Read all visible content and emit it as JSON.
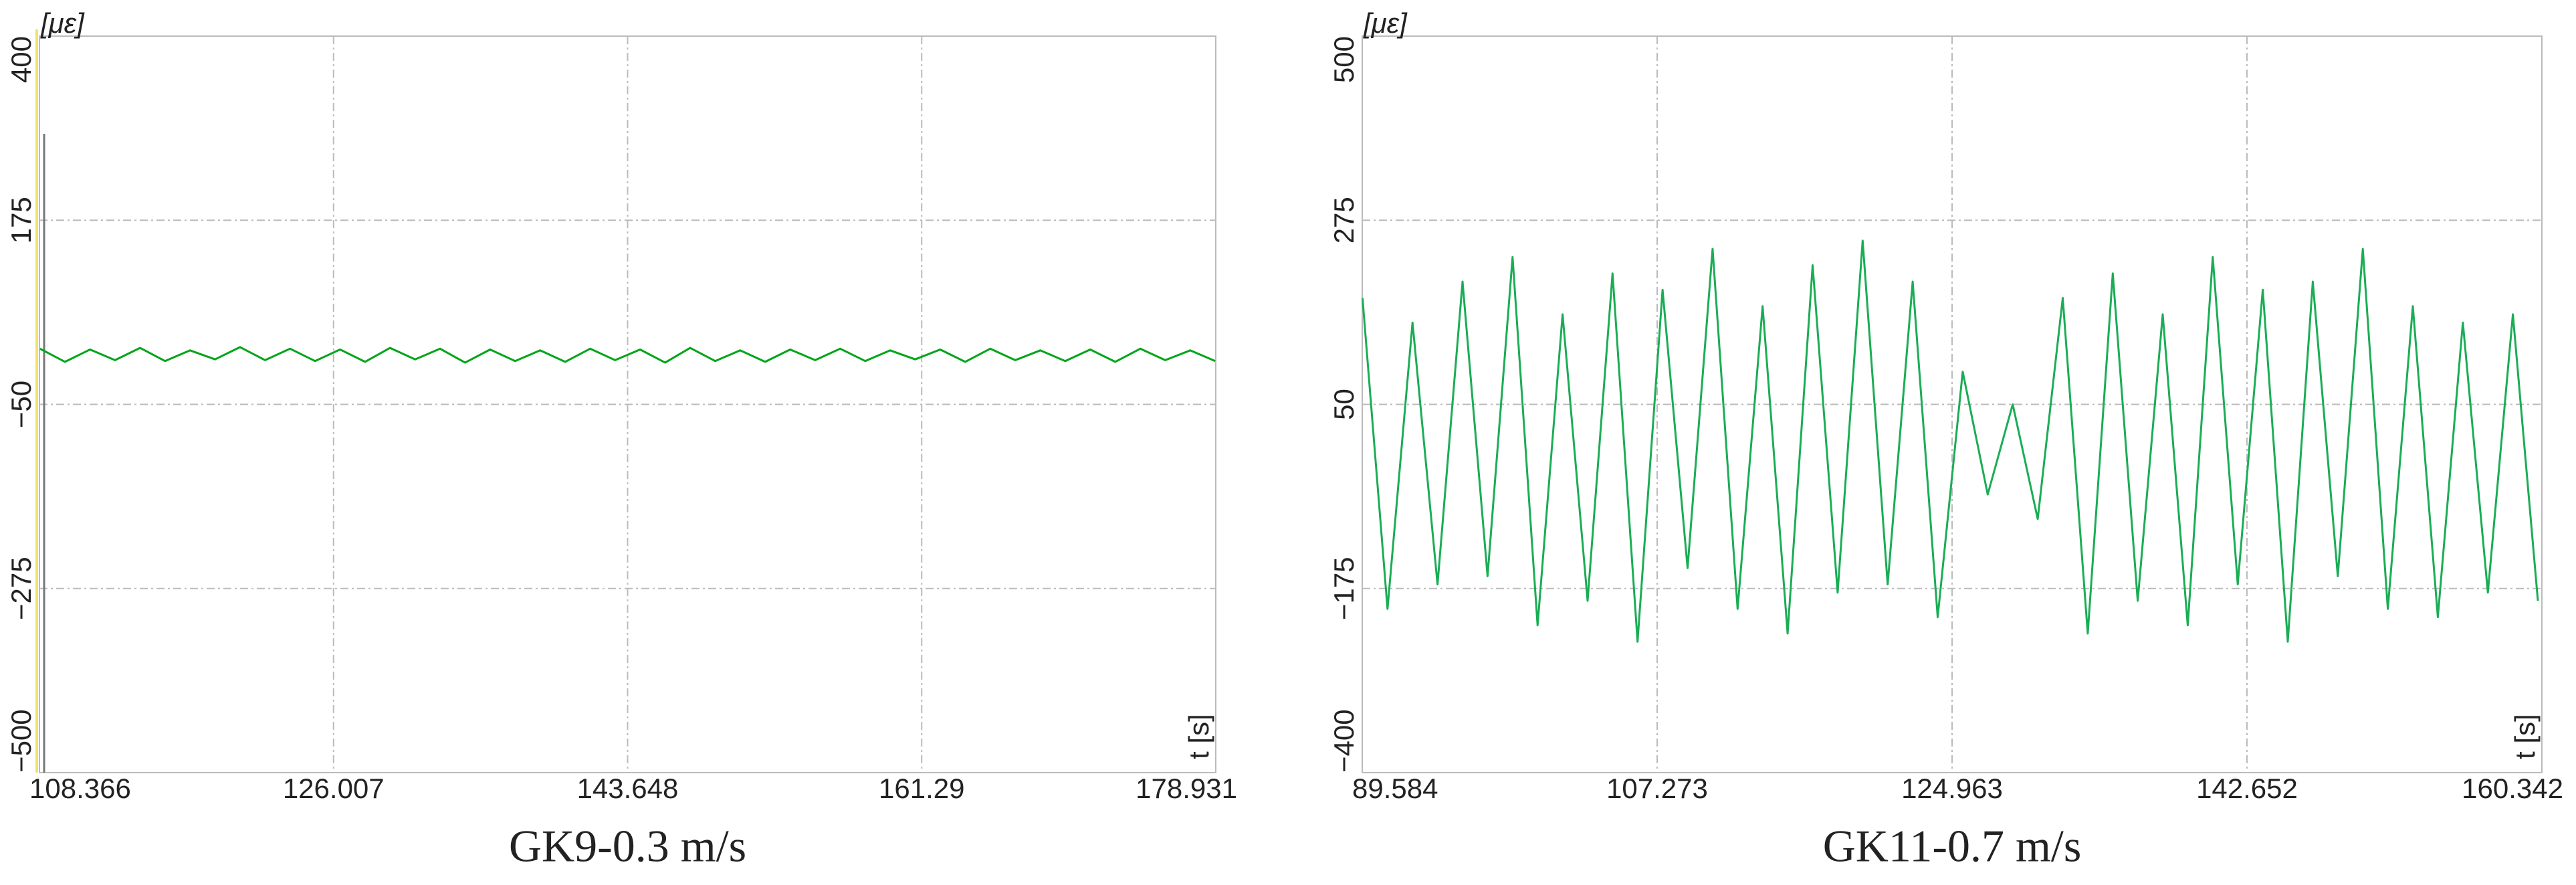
{
  "chart_data": [
    {
      "type": "line",
      "title": "GK9-0.3 m/s",
      "y_unit": "[με]",
      "x_label": "t [s]",
      "xlim": [
        108.366,
        178.931
      ],
      "xticks": [
        108.366,
        126.007,
        143.648,
        161.29,
        178.931
      ],
      "ylim": [
        -500,
        400
      ],
      "yticks": [
        400,
        175,
        {
          "value": -50,
          "label": "−50"
        },
        {
          "value": -275,
          "label": "−275"
        },
        {
          "value": -500,
          "label": "−500"
        }
      ],
      "grid": true,
      "series": [
        {
          "color": "#00a51a",
          "x": [
            108.4,
            109.9,
            111.4,
            112.9,
            114.4,
            115.9,
            117.4,
            118.9,
            120.4,
            121.9,
            123.4,
            124.9,
            126.4,
            127.9,
            129.4,
            130.9,
            132.4,
            133.9,
            135.4,
            136.9,
            138.4,
            139.9,
            141.4,
            142.9,
            144.4,
            145.9,
            147.4,
            148.9,
            150.4,
            151.9,
            153.4,
            154.9,
            156.4,
            157.9,
            159.4,
            160.9,
            162.4,
            163.9,
            165.4,
            166.9,
            168.4,
            169.9,
            171.4,
            172.9,
            174.4,
            175.9,
            177.4,
            178.9
          ],
          "values": [
            18,
            2,
            17,
            4,
            19,
            3,
            16,
            5,
            20,
            4,
            18,
            3,
            17,
            2,
            19,
            5,
            18,
            1,
            17,
            3,
            16,
            2,
            18,
            4,
            17,
            1,
            19,
            3,
            16,
            2,
            17,
            4,
            18,
            3,
            16,
            5,
            17,
            2,
            18,
            4,
            16,
            3,
            17,
            2,
            18,
            4,
            16,
            3
          ]
        }
      ]
    },
    {
      "type": "line",
      "title": "GK11-0.7 m/s",
      "y_unit": "[με]",
      "x_label": "t [s]",
      "xlim": [
        89.584,
        160.342
      ],
      "xticks": [
        89.584,
        107.273,
        124.963,
        142.652,
        160.342
      ],
      "ylim": [
        -400,
        500
      ],
      "yticks": [
        500,
        275,
        50,
        {
          "value": -175,
          "label": "−175"
        },
        {
          "value": -400,
          "label": "−400"
        }
      ],
      "grid": true,
      "series": [
        {
          "color": "#1aad55",
          "x": [
            89.6,
            91.1,
            92.6,
            94.1,
            95.6,
            97.1,
            98.6,
            100.1,
            101.6,
            103.1,
            104.6,
            106.1,
            107.6,
            109.1,
            110.6,
            112.1,
            113.6,
            115.1,
            116.6,
            118.1,
            119.6,
            121.1,
            122.6,
            124.1,
            125.6,
            127.1,
            128.6,
            130.1,
            131.6,
            133.1,
            134.6,
            136.1,
            137.6,
            139.1,
            140.6,
            142.1,
            143.6,
            145.1,
            146.6,
            148.1,
            149.6,
            151.1,
            152.6,
            154.1,
            155.6,
            157.1,
            158.6,
            160.1
          ],
          "values": [
            180,
            -200,
            150,
            -170,
            200,
            -160,
            230,
            -220,
            160,
            -190,
            210,
            -240,
            190,
            -150,
            240,
            -200,
            170,
            -230,
            220,
            -180,
            250,
            -170,
            200,
            -210,
            90,
            -60,
            50,
            -90,
            180,
            -230,
            210,
            -190,
            160,
            -220,
            230,
            -170,
            190,
            -240,
            200,
            -160,
            240,
            -200,
            170,
            -210,
            150,
            -180,
            160,
            -190
          ]
        }
      ]
    }
  ]
}
